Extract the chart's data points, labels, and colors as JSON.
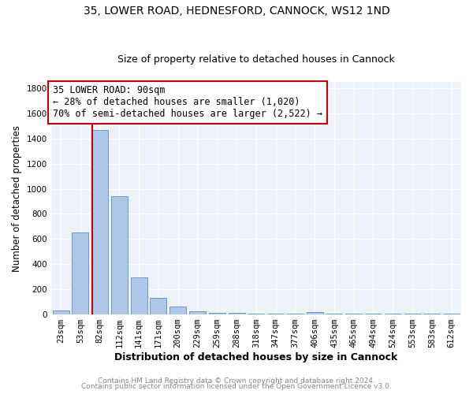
{
  "title": "35, LOWER ROAD, HEDNESFORD, CANNOCK, WS12 1ND",
  "subtitle": "Size of property relative to detached houses in Cannock",
  "xlabel": "Distribution of detached houses by size in Cannock",
  "ylabel": "Number of detached properties",
  "categories": [
    "23sqm",
    "53sqm",
    "82sqm",
    "112sqm",
    "141sqm",
    "171sqm",
    "200sqm",
    "229sqm",
    "259sqm",
    "288sqm",
    "318sqm",
    "347sqm",
    "377sqm",
    "406sqm",
    "435sqm",
    "465sqm",
    "494sqm",
    "524sqm",
    "553sqm",
    "583sqm",
    "612sqm"
  ],
  "values": [
    35,
    650,
    1470,
    940,
    295,
    130,
    65,
    25,
    15,
    10,
    8,
    8,
    8,
    20,
    5,
    5,
    5,
    5,
    5,
    5,
    5
  ],
  "bar_color": "#aec6e8",
  "bar_edge_color": "#5a8fc0",
  "annotation_line1": "35 LOWER ROAD: 90sqm",
  "annotation_line2": "← 28% of detached houses are smaller (1,020)",
  "annotation_line3": "70% of semi-detached houses are larger (2,522) →",
  "annotation_box_color": "#cc0000",
  "red_line_index": 2,
  "ylim": [
    0,
    1850
  ],
  "yticks": [
    0,
    200,
    400,
    600,
    800,
    1000,
    1200,
    1400,
    1600,
    1800
  ],
  "bg_color": "#eef2fa",
  "footer_line1": "Contains HM Land Registry data © Crown copyright and database right 2024.",
  "footer_line2": "Contains public sector information licensed under the Open Government Licence v3.0.",
  "title_fontsize": 10,
  "subtitle_fontsize": 9,
  "ylabel_fontsize": 8.5,
  "xlabel_fontsize": 9,
  "tick_fontsize": 7.5,
  "annotation_fontsize": 8.5,
  "footer_fontsize": 6.5
}
